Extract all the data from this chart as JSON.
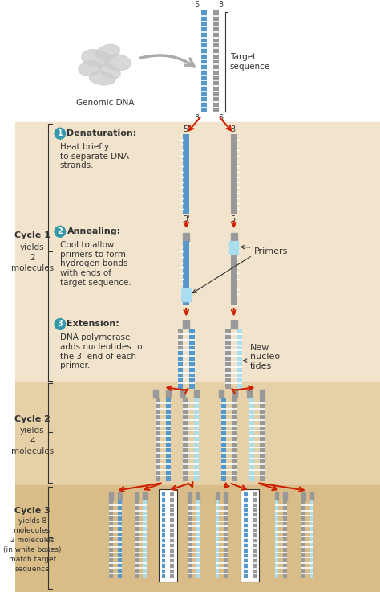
{
  "bg_white": "#ffffff",
  "bg_cycle1": "#f2e4cc",
  "bg_cycle2": "#e6d0a8",
  "bg_cycle3": "#d9bc88",
  "dna_blue": "#5599cc",
  "dna_gray": "#999999",
  "dna_light_blue": "#aaddee",
  "arrow_red": "#cc2200",
  "text_dark": "#333333",
  "circle_teal": "#3399aa",
  "step1_title": "Denaturation:",
  "step1_text": "Heat briefly\nto separate DNA\nstrands.",
  "step2_title": "Annealing:",
  "step2_text": "Cool to allow\nprimers to form\nhydrogen bonds\nwith ends of\ntarget sequence.",
  "step3_title": "Extension:",
  "step3_text": "DNA polymerase\nadds nucleotides to\nthe 3’ end of each\nprimer.",
  "genomic_dna_label": "Genomic DNA",
  "target_sequence_label": "Target\nsequence",
  "primers_label": "Primers",
  "new_nucleo_label": "New\nnucleo-\ntides",
  "cycle1_text": [
    "Cycle 1",
    "yields",
    "2",
    "molecules"
  ],
  "cycle2_text": [
    "Cycle 2",
    "yields",
    "4",
    "molecules"
  ],
  "cycle3_text": [
    "Cycle 3",
    "yields 8",
    "molecules;",
    "2 molecules",
    "(in white boxes)",
    "match target",
    "sequence"
  ]
}
